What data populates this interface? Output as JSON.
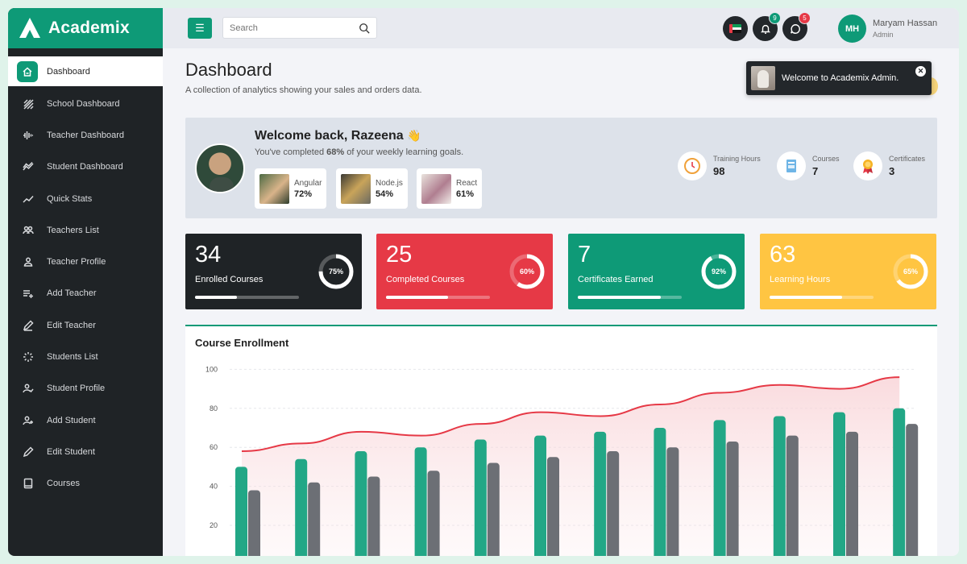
{
  "app": {
    "name": "Academix"
  },
  "sidebar": {
    "items": [
      {
        "label": "Dashboard",
        "icon": "home-icon",
        "active": true
      },
      {
        "label": "School Dashboard",
        "icon": "hatch-icon"
      },
      {
        "label": "Teacher Dashboard",
        "icon": "waveform-icon"
      },
      {
        "label": "Student Dashboard",
        "icon": "trend-icon"
      },
      {
        "label": "Quick Stats",
        "icon": "chart-line-icon"
      },
      {
        "label": "Teachers List",
        "icon": "users-icon"
      },
      {
        "label": "Teacher Profile",
        "icon": "user-icon"
      },
      {
        "label": "Add Teacher",
        "icon": "list-add-icon"
      },
      {
        "label": "Edit Teacher",
        "icon": "pencil-icon"
      },
      {
        "label": "Students List",
        "icon": "spinner-icon"
      },
      {
        "label": "Student Profile",
        "icon": "user-check-icon"
      },
      {
        "label": "Add Student",
        "icon": "user-plus-icon"
      },
      {
        "label": "Edit Student",
        "icon": "pen-icon"
      },
      {
        "label": "Courses",
        "icon": "book-icon"
      }
    ]
  },
  "topbar": {
    "search_placeholder": "Search",
    "notifications_count": "9",
    "messages_count": "5",
    "user": {
      "initials": "MH",
      "name": "Maryam Hassan",
      "role": "Admin"
    }
  },
  "page": {
    "title": "Dashboard",
    "subtitle": "A collection of analytics showing your sales and orders data."
  },
  "toast": {
    "message": "Welcome to Academix Admin."
  },
  "welcome": {
    "title": "Welcome back, Razeena",
    "emoji": "👋",
    "sub_prefix": "You've completed ",
    "sub_pct": "68%",
    "sub_suffix": " of your weekly learning goals.",
    "courses": [
      {
        "name": "Angular",
        "pct": "72%"
      },
      {
        "name": "Node.js",
        "pct": "54%"
      },
      {
        "name": "React",
        "pct": "61%"
      }
    ],
    "stats": [
      {
        "label": "Training Hours",
        "value": "98"
      },
      {
        "label": "Courses",
        "value": "7"
      },
      {
        "label": "Certificates",
        "value": "3"
      }
    ]
  },
  "kpis": [
    {
      "value": "34",
      "label": "Enrolled Courses",
      "ring": "75%",
      "ring_pct": 75,
      "bar_pct": 40,
      "color": "#1f2326"
    },
    {
      "value": "25",
      "label": "Completed Courses",
      "ring": "60%",
      "ring_pct": 60,
      "bar_pct": 60,
      "color": "#e63946"
    },
    {
      "value": "7",
      "label": "Certificates Earned",
      "ring": "92%",
      "ring_pct": 92,
      "bar_pct": 80,
      "color": "#0e9a77"
    },
    {
      "value": "63",
      "label": "Learning Hours",
      "ring": "65%",
      "ring_pct": 65,
      "bar_pct": 70,
      "color": "#ffc542"
    }
  ],
  "colors": {
    "accent": "#0e9a77",
    "danger": "#e63946",
    "warning": "#ffc542",
    "dark": "#1f2326"
  },
  "chart_data": {
    "type": "bar",
    "title": "Course Enrollment",
    "yticks": [
      20,
      40,
      60,
      80,
      100
    ],
    "ylim": [
      0,
      100
    ],
    "series": [
      {
        "values": [
          50,
          54,
          58,
          60,
          64,
          66,
          68,
          70,
          74,
          76,
          78,
          80
        ],
        "color": "#22a786"
      },
      {
        "values": [
          38,
          42,
          45,
          48,
          52,
          55,
          58,
          60,
          63,
          66,
          68,
          72
        ],
        "color": "#6c6f75"
      },
      {
        "values": [
          58,
          62,
          68,
          66,
          72,
          78,
          76,
          82,
          88,
          92,
          90,
          96
        ],
        "color": "#e63946",
        "kind": "area"
      }
    ]
  }
}
